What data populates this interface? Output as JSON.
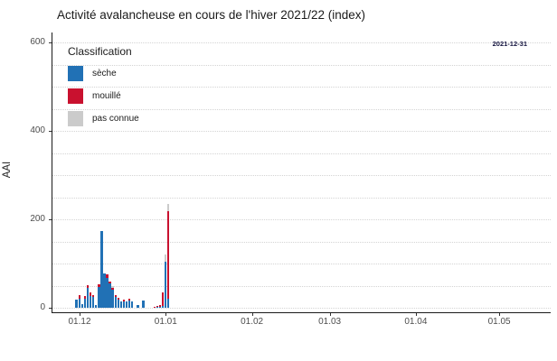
{
  "chart_data": {
    "type": "bar",
    "stacked": true,
    "title": "Activité avalancheuse en cours de l'hiver 2021/22 (index)",
    "xlabel": "",
    "ylabel": "AAI",
    "y_ticks": [
      0,
      200,
      400,
      600
    ],
    "y_domain": [
      -10.2,
      622.4
    ],
    "grid": {
      "orientation": "horizontal",
      "style": "dotted",
      "step": 50,
      "max": 600,
      "color": "#d4d4d4"
    },
    "x_ticks": [
      {
        "label": "01.12",
        "day": 0
      },
      {
        "label": "01.01",
        "day": 31
      },
      {
        "label": "01.02",
        "day": 62
      },
      {
        "label": "01.03",
        "day": 90
      },
      {
        "label": "01.04",
        "day": 121
      },
      {
        "label": "01.05",
        "day": 151
      }
    ],
    "x_domain_days": [
      -10.1,
      169.2
    ],
    "annotation": {
      "text": "2021-12-31"
    },
    "legend": {
      "title": "Classification",
      "position": "top-left-inside",
      "items": [
        {
          "key": "dry",
          "label": "sèche",
          "color": "#2171b5"
        },
        {
          "key": "wet",
          "label": "mouillé",
          "color": "#c9112f"
        },
        {
          "key": "unknown",
          "label": "pas connue",
          "color": "#cbcbcb"
        }
      ]
    },
    "stack_order": [
      "dry",
      "wet",
      "unknown"
    ],
    "bars": [
      {
        "day": -1.4,
        "dry": 18,
        "wet": 0,
        "unknown": 0
      },
      {
        "day": -0.4,
        "dry": 20,
        "wet": 8,
        "unknown": 0
      },
      {
        "day": 0.6,
        "dry": 8,
        "wet": 0,
        "unknown": 0
      },
      {
        "day": 1.6,
        "dry": 20,
        "wet": 6,
        "unknown": 0
      },
      {
        "day": 2.6,
        "dry": 45,
        "wet": 6,
        "unknown": 0
      },
      {
        "day": 3.6,
        "dry": 26,
        "wet": 8,
        "unknown": 0
      },
      {
        "day": 4.6,
        "dry": 25,
        "wet": 4,
        "unknown": 0
      },
      {
        "day": 5.6,
        "dry": 6,
        "wet": 0,
        "unknown": 0
      },
      {
        "day": 6.6,
        "dry": 48,
        "wet": 6,
        "unknown": 0
      },
      {
        "day": 7.6,
        "dry": 173,
        "wet": 0,
        "unknown": 0
      },
      {
        "day": 8.6,
        "dry": 77,
        "wet": 0,
        "unknown": 0
      },
      {
        "day": 9.6,
        "dry": 68,
        "wet": 8,
        "unknown": 0
      },
      {
        "day": 10.6,
        "dry": 55,
        "wet": 5,
        "unknown": 0
      },
      {
        "day": 11.6,
        "dry": 40,
        "wet": 6,
        "unknown": 4
      },
      {
        "day": 12.6,
        "dry": 25,
        "wet": 4,
        "unknown": 0
      },
      {
        "day": 13.6,
        "dry": 18,
        "wet": 4,
        "unknown": 0
      },
      {
        "day": 14.6,
        "dry": 15,
        "wet": 0,
        "unknown": 0
      },
      {
        "day": 15.6,
        "dry": 14,
        "wet": 4,
        "unknown": 0
      },
      {
        "day": 16.6,
        "dry": 15,
        "wet": 0,
        "unknown": 0
      },
      {
        "day": 17.6,
        "dry": 16,
        "wet": 5,
        "unknown": 0
      },
      {
        "day": 18.6,
        "dry": 14,
        "wet": 0,
        "unknown": 0
      },
      {
        "day": 20.6,
        "dry": 6,
        "wet": 0,
        "unknown": 0
      },
      {
        "day": 22.6,
        "dry": 17,
        "wet": 0,
        "unknown": 0
      },
      {
        "day": 26.6,
        "dry": 0,
        "wet": 2,
        "unknown": 0
      },
      {
        "day": 27.6,
        "dry": 2,
        "wet": 3,
        "unknown": 0
      },
      {
        "day": 28.6,
        "dry": 3,
        "wet": 4,
        "unknown": 0
      },
      {
        "day": 29.6,
        "dry": 5,
        "wet": 30,
        "unknown": 0
      },
      {
        "day": 30.6,
        "dry": 105,
        "wet": 0,
        "unknown": 15
      },
      {
        "day": 31.6,
        "dry": 20,
        "wet": 199,
        "unknown": 16
      }
    ]
  }
}
